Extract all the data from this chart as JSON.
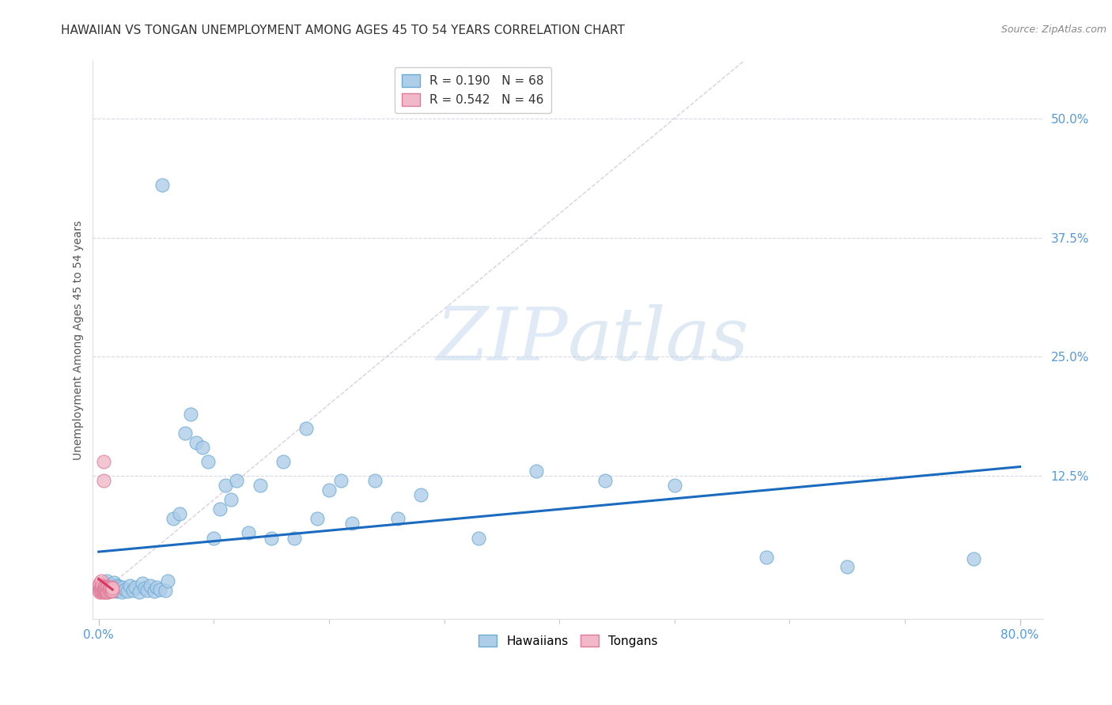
{
  "title": "HAWAIIAN VS TONGAN UNEMPLOYMENT AMONG AGES 45 TO 54 YEARS CORRELATION CHART",
  "source": "Source: ZipAtlas.com",
  "ylabel": "Unemployment Among Ages 45 to 54 years",
  "ytick_labels": [
    "50.0%",
    "37.5%",
    "25.0%",
    "12.5%"
  ],
  "ytick_values": [
    0.5,
    0.375,
    0.25,
    0.125
  ],
  "xlim": [
    -0.005,
    0.82
  ],
  "ylim": [
    -0.025,
    0.56
  ],
  "hawaiian_color": "#aecde8",
  "tongan_color": "#f0b8c8",
  "hawaiian_edge_color": "#6aaad4",
  "tongan_edge_color": "#e07898",
  "regression_hawaii_color": "#1a6bbf",
  "regression_tongan_color": "#d63860",
  "diagonal_color": "#d8d0e0",
  "R_hawaii": 0.19,
  "N_hawaii": 68,
  "R_tongan": 0.542,
  "N_tongan": 46,
  "hawaiian_x": [
    0.002,
    0.003,
    0.004,
    0.005,
    0.006,
    0.007,
    0.007,
    0.008,
    0.009,
    0.01,
    0.011,
    0.012,
    0.013,
    0.014,
    0.015,
    0.016,
    0.017,
    0.018,
    0.02,
    0.021,
    0.023,
    0.025,
    0.027,
    0.03,
    0.032,
    0.035,
    0.038,
    0.04,
    0.042,
    0.045,
    0.048,
    0.05,
    0.053,
    0.055,
    0.058,
    0.06,
    0.065,
    0.07,
    0.075,
    0.08,
    0.085,
    0.09,
    0.095,
    0.1,
    0.105,
    0.11,
    0.115,
    0.12,
    0.13,
    0.14,
    0.15,
    0.16,
    0.17,
    0.18,
    0.19,
    0.2,
    0.21,
    0.22,
    0.24,
    0.26,
    0.28,
    0.33,
    0.38,
    0.44,
    0.5,
    0.58,
    0.65,
    0.76
  ],
  "hawaiian_y": [
    0.01,
    0.005,
    0.008,
    0.003,
    0.012,
    0.006,
    0.015,
    0.004,
    0.009,
    0.007,
    0.011,
    0.006,
    0.013,
    0.008,
    0.004,
    0.01,
    0.005,
    0.009,
    0.003,
    0.008,
    0.006,
    0.004,
    0.01,
    0.005,
    0.008,
    0.003,
    0.012,
    0.007,
    0.005,
    0.01,
    0.004,
    0.008,
    0.006,
    0.43,
    0.005,
    0.015,
    0.08,
    0.085,
    0.17,
    0.19,
    0.16,
    0.155,
    0.14,
    0.06,
    0.09,
    0.115,
    0.1,
    0.12,
    0.065,
    0.115,
    0.06,
    0.14,
    0.06,
    0.175,
    0.08,
    0.11,
    0.12,
    0.075,
    0.12,
    0.08,
    0.105,
    0.06,
    0.13,
    0.12,
    0.115,
    0.04,
    0.03,
    0.038
  ],
  "tongan_x": [
    0.0,
    0.0,
    0.001,
    0.001,
    0.001,
    0.001,
    0.002,
    0.002,
    0.002,
    0.002,
    0.003,
    0.003,
    0.003,
    0.003,
    0.004,
    0.004,
    0.004,
    0.004,
    0.004,
    0.005,
    0.005,
    0.005,
    0.005,
    0.006,
    0.006,
    0.006,
    0.006,
    0.007,
    0.007,
    0.007,
    0.007,
    0.008,
    0.008,
    0.008,
    0.008,
    0.009,
    0.009,
    0.009,
    0.01,
    0.01,
    0.01,
    0.011,
    0.011,
    0.011,
    0.012,
    0.012
  ],
  "tongan_y": [
    0.005,
    0.01,
    0.005,
    0.008,
    0.012,
    0.003,
    0.006,
    0.003,
    0.008,
    0.015,
    0.004,
    0.008,
    0.005,
    0.01,
    0.005,
    0.007,
    0.004,
    0.14,
    0.12,
    0.006,
    0.009,
    0.004,
    0.003,
    0.005,
    0.008,
    0.004,
    0.006,
    0.007,
    0.005,
    0.003,
    0.008,
    0.006,
    0.004,
    0.008,
    0.003,
    0.007,
    0.005,
    0.004,
    0.008,
    0.005,
    0.007,
    0.006,
    0.004,
    0.008,
    0.005,
    0.007
  ],
  "watermark_zip": "ZIP",
  "watermark_atlas": "atlas",
  "title_fontsize": 11,
  "label_fontsize": 10,
  "tick_fontsize": 11,
  "legend_fontsize": 11,
  "source_fontsize": 9
}
